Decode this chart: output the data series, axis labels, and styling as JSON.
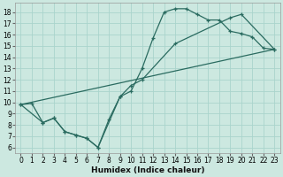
{
  "xlabel": "Humidex (Indice chaleur)",
  "bg_color": "#cce8e0",
  "grid_color": "#aad4cc",
  "line_color": "#2a6b60",
  "xlim": [
    -0.5,
    23.5
  ],
  "ylim": [
    5.5,
    18.8
  ],
  "xticks": [
    0,
    1,
    2,
    3,
    4,
    5,
    6,
    7,
    8,
    9,
    10,
    11,
    12,
    13,
    14,
    15,
    16,
    17,
    18,
    19,
    20,
    21,
    22,
    23
  ],
  "yticks": [
    6,
    7,
    8,
    9,
    10,
    11,
    12,
    13,
    14,
    15,
    16,
    17,
    18
  ],
  "curve1_x": [
    0,
    1,
    2,
    3,
    4,
    5,
    6,
    7,
    8,
    9,
    10,
    11,
    12,
    13,
    14,
    15,
    16,
    17,
    18,
    19,
    20,
    21,
    22,
    23
  ],
  "curve1_y": [
    9.8,
    9.9,
    8.2,
    8.6,
    7.4,
    7.1,
    6.8,
    6.0,
    8.5,
    10.5,
    11.0,
    13.0,
    15.7,
    18.0,
    18.3,
    18.3,
    17.8,
    17.3,
    17.3,
    16.3,
    16.1,
    15.8,
    14.8,
    14.7
  ],
  "curve2_x": [
    0,
    2,
    3,
    4,
    5,
    6,
    7,
    9,
    10,
    11,
    14,
    19,
    20,
    23
  ],
  "curve2_y": [
    9.8,
    8.2,
    8.6,
    7.4,
    7.1,
    6.8,
    6.0,
    10.5,
    11.5,
    12.0,
    15.2,
    17.5,
    17.8,
    14.7
  ],
  "line3_x": [
    0,
    23
  ],
  "line3_y": [
    9.8,
    14.7
  ]
}
